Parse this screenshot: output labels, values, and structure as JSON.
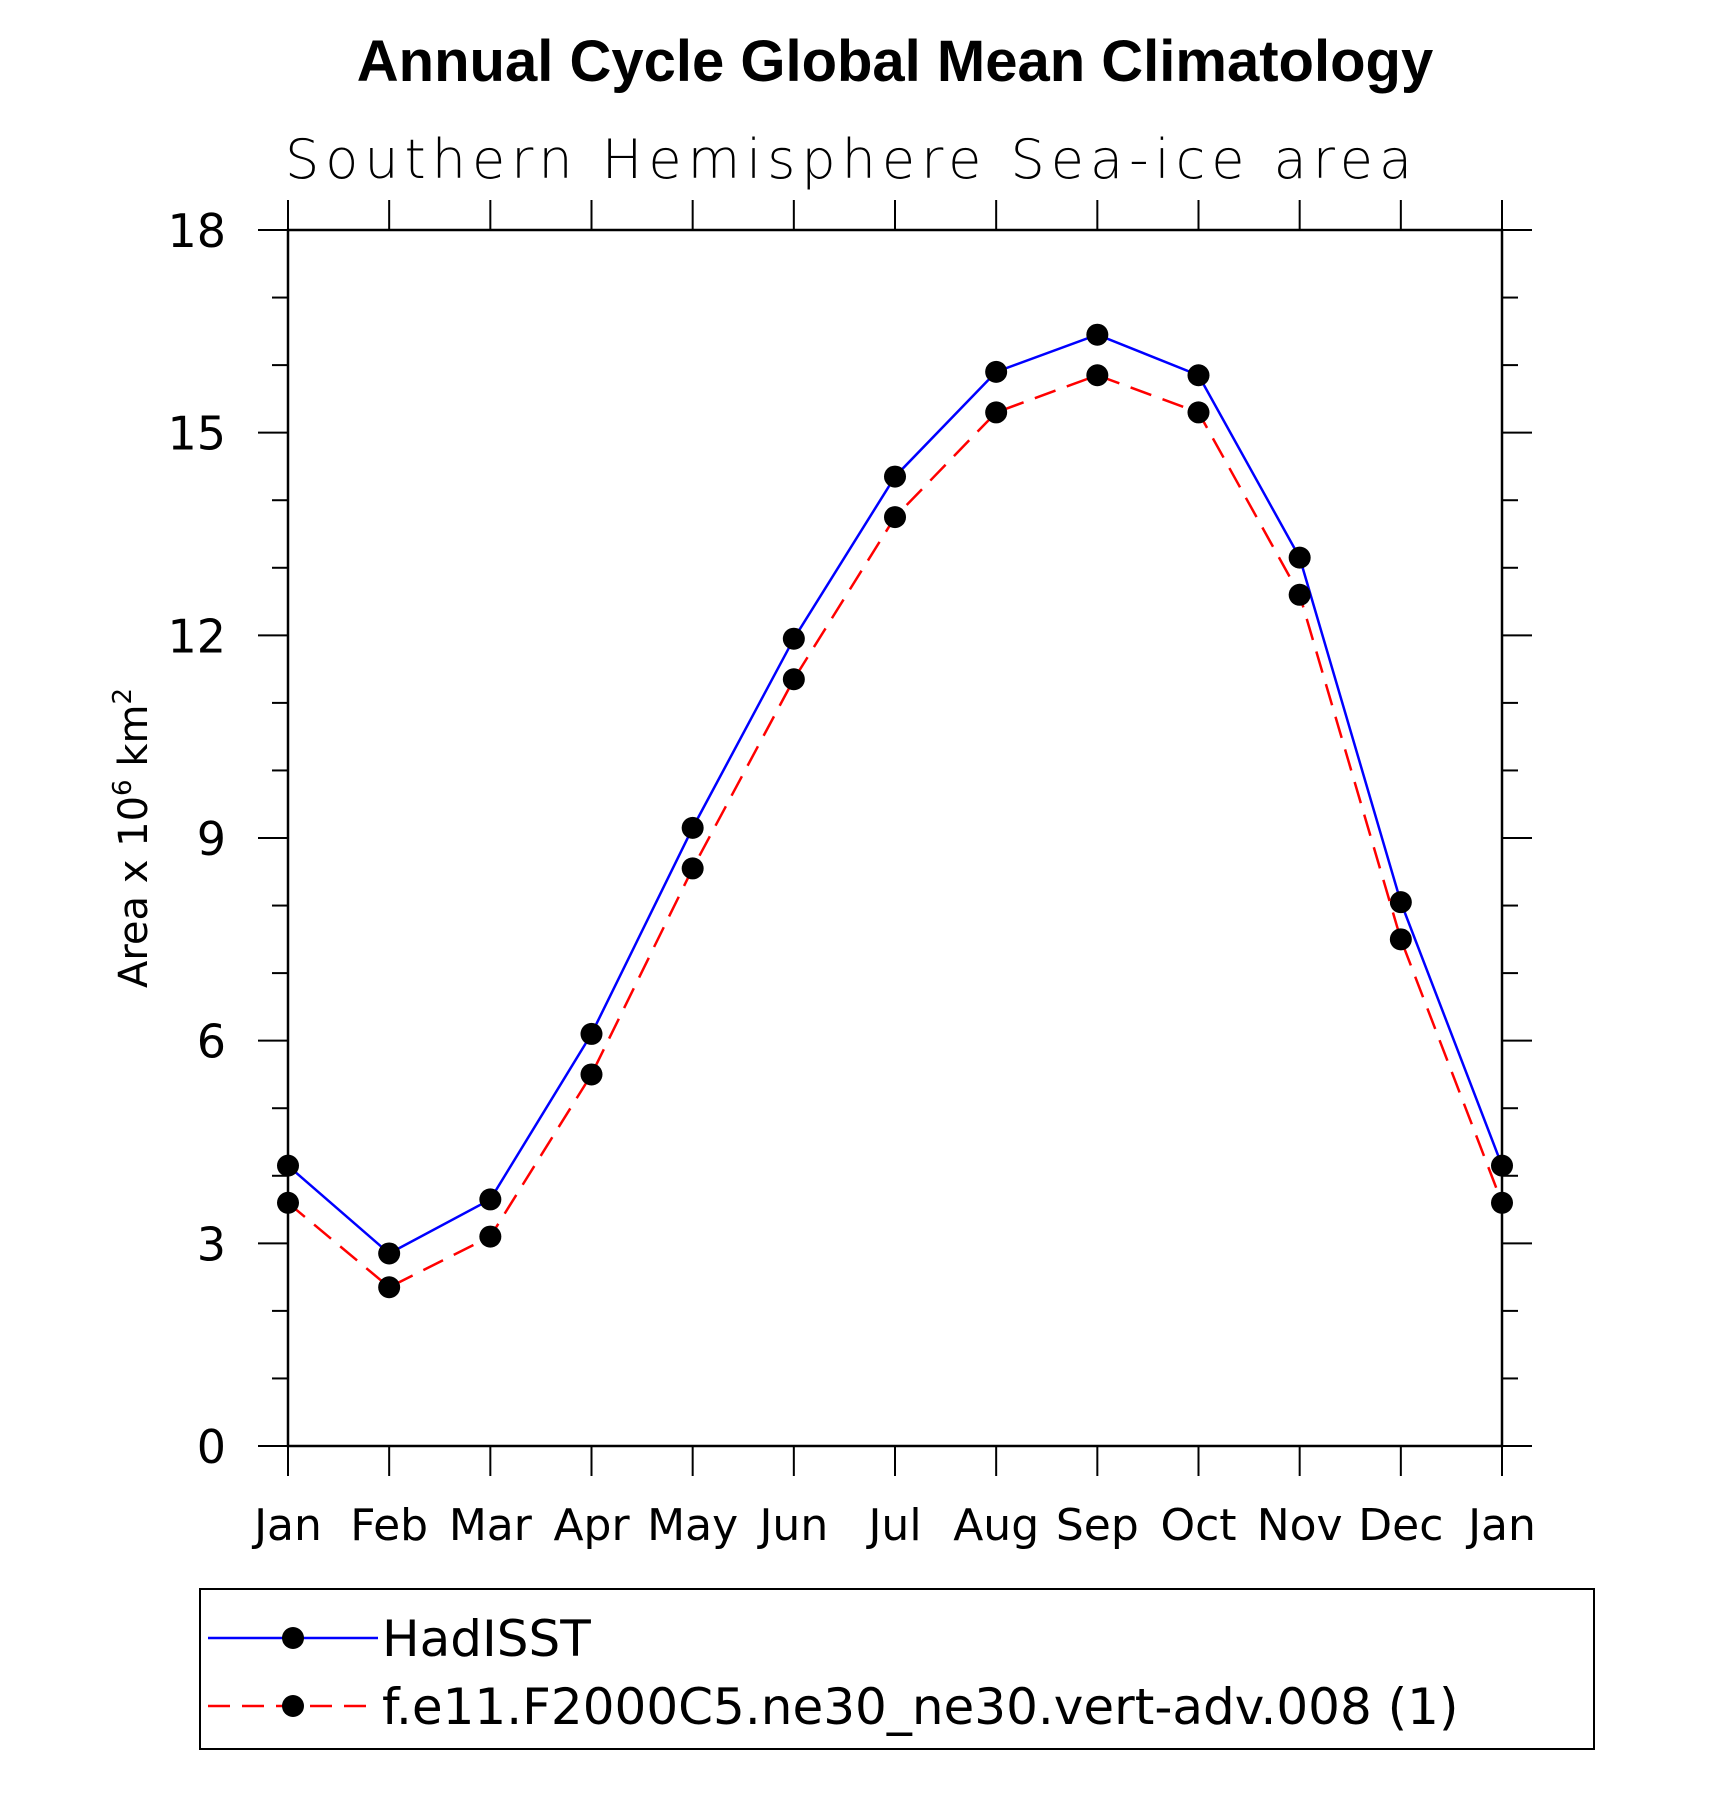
{
  "chart_data": {
    "type": "line",
    "title": "Annual Cycle Global Mean Climatology",
    "subtitle": "Southern Hemisphere Sea-ice area",
    "ylabel": "Area x 10",
    "ylabel_exponent": "6",
    "ylabel_unit": " km",
    "ylabel_unit_exponent": "2",
    "xlabel": "",
    "categories": [
      "Jan",
      "Feb",
      "Mar",
      "Apr",
      "May",
      "Jun",
      "Jul",
      "Aug",
      "Sep",
      "Oct",
      "Nov",
      "Dec",
      "Jan"
    ],
    "ylim": [
      0,
      18
    ],
    "yticks": [
      0,
      3,
      6,
      9,
      12,
      15,
      18
    ],
    "legend_position": "bottom",
    "grid": false,
    "series": [
      {
        "name": "HadISST",
        "color": "#0000ff",
        "dash": "solid",
        "values": [
          4.15,
          2.85,
          3.65,
          6.1,
          9.15,
          11.95,
          14.35,
          15.9,
          16.45,
          15.85,
          13.15,
          8.05,
          4.15
        ]
      },
      {
        "name": "f.e11.F2000C5.ne30_ne30.vert-adv.008 (1)",
        "color": "#ff0000",
        "dash": "dashed",
        "values": [
          3.6,
          2.35,
          3.1,
          5.5,
          8.55,
          11.35,
          13.75,
          15.3,
          15.85,
          15.3,
          12.6,
          7.5,
          3.6
        ]
      }
    ]
  }
}
